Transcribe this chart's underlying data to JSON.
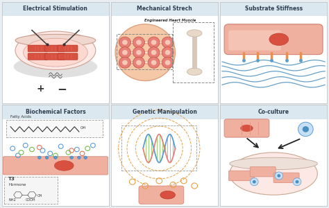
{
  "panels": [
    {
      "title": "Electrical Stimulation",
      "row": 0,
      "col": 0
    },
    {
      "title": "Mechanical Strech",
      "row": 0,
      "col": 1
    },
    {
      "title": "Substrate Stiffness",
      "row": 0,
      "col": 2
    },
    {
      "title": "Biochemical Factors",
      "row": 1,
      "col": 0
    },
    {
      "title": "Genetic Manipulation",
      "row": 1,
      "col": 1
    },
    {
      "title": "Co-culture",
      "row": 1,
      "col": 2
    }
  ],
  "header_bg": "#dce8f0",
  "panel_bg": "#ffffff",
  "salmon": "#e8706a",
  "light_salmon": "#f0b8a8",
  "very_light_salmon": "#f8e0d8",
  "blue": "#4a8fc0",
  "light_blue": "#a8c8e8",
  "orange": "#e8954a",
  "light_orange": "#f0c898",
  "green": "#70ad47",
  "gray": "#aaaaaa",
  "dark_gray": "#555555",
  "beige": "#e8d8c8",
  "light_beige": "#f5ede5"
}
